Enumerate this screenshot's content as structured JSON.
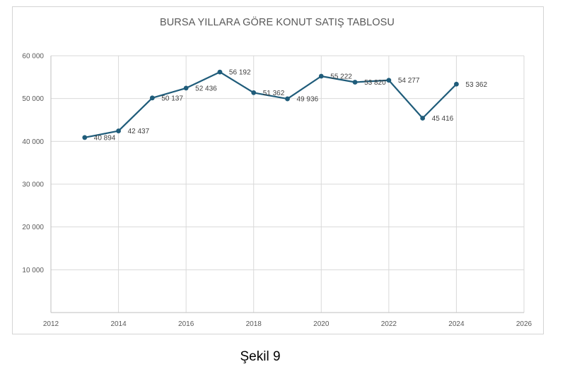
{
  "caption": "Şekil 9",
  "chart_data": {
    "type": "line",
    "title": "BURSA YILLARA GÖRE KONUT SATIŞ TABLOSU",
    "xlabel": "",
    "ylabel": "",
    "xlim": [
      2012,
      2026
    ],
    "ylim": [
      0,
      60000
    ],
    "x_ticks": [
      "2012",
      "2014",
      "2016",
      "2018",
      "2020",
      "2022",
      "2024",
      "2026"
    ],
    "y_ticks": [
      "",
      "10 000",
      "20 000",
      "30 000",
      "40 000",
      "50 000",
      "60 000"
    ],
    "grid": true,
    "legend": "none",
    "colors": {
      "line": "#1f5c7a",
      "marker": "#1f5c7a",
      "grid": "#d9d9d9",
      "axis": "#bfbfbf"
    },
    "series": [
      {
        "x": [
          2013,
          2014,
          2015,
          2016,
          2017,
          2018,
          2019,
          2020,
          2021,
          2022,
          2023,
          2024
        ],
        "values": [
          40894,
          42437,
          50137,
          52436,
          56192,
          51362,
          49936,
          55222,
          53820,
          54277,
          45416,
          53362
        ],
        "labels": [
          "40 894",
          "42 437",
          "50 137",
          "52 436",
          "56 192",
          "51 362",
          "49 936",
          "55 222",
          "53 820",
          "54 277",
          "45 416",
          "53 362"
        ]
      }
    ]
  }
}
